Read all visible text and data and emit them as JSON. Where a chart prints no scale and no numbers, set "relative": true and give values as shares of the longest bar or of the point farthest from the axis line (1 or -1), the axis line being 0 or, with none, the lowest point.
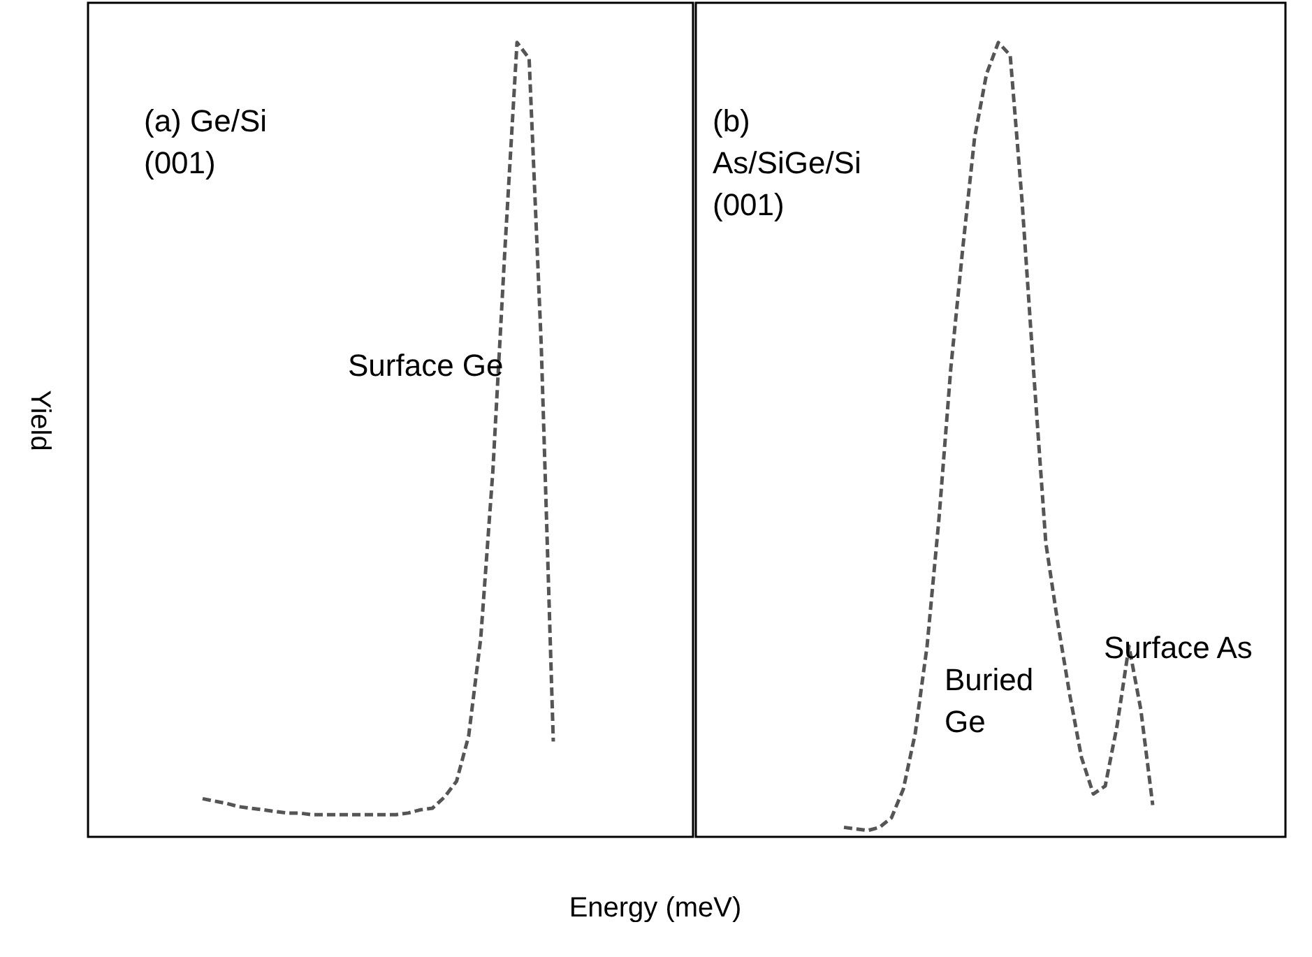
{
  "chart_data": [
    {
      "type": "line",
      "relative": true,
      "xlabel": "Energy (meV)",
      "ylabel": "Yield",
      "line_style": "dashed",
      "grid": false,
      "categories": [
        null,
        null,
        null,
        null,
        null,
        null,
        null,
        null,
        null,
        null,
        null,
        null,
        null,
        null,
        null,
        null,
        null,
        null,
        null,
        null,
        null,
        null,
        null,
        null,
        null,
        null,
        null,
        null,
        null,
        null
      ],
      "series": [
        {
          "color": "#555555",
          "values": [
            0.048,
            0.045,
            0.042,
            0.038,
            0.036,
            0.034,
            0.032,
            0.03,
            0.03,
            0.028,
            0.028,
            0.028,
            0.028,
            0.028,
            0.028,
            0.028,
            0.028,
            0.03,
            0.034,
            0.036,
            0.05,
            0.07,
            0.127,
            0.25,
            0.46,
            0.74,
            1.0,
            0.98,
            0.62,
            0.12
          ]
        }
      ],
      "annotations": [
        "(a) Ge/Si\n(001)",
        "Surface Ge"
      ]
    },
    {
      "type": "line",
      "relative": true,
      "line_style": "dashed",
      "grid": false,
      "categories": [
        null,
        null,
        null,
        null,
        null,
        null,
        null,
        null,
        null,
        null,
        null,
        null,
        null,
        null,
        null,
        null,
        null,
        null,
        null,
        null,
        null,
        null,
        null,
        null,
        null,
        null,
        null
      ],
      "series": [
        {
          "color": "#555555",
          "values": [
            0.012,
            0.01,
            0.008,
            0.012,
            0.024,
            0.06,
            0.13,
            0.24,
            0.4,
            0.59,
            0.74,
            0.88,
            0.96,
            1.0,
            0.984,
            0.8,
            0.58,
            0.37,
            0.27,
            0.18,
            0.1,
            0.054,
            0.064,
            0.14,
            0.24,
            0.16,
            0.04
          ]
        }
      ],
      "annotations": [
        "(b)\nAs/SiGe/Si\n(001)",
        "Buried\nGe",
        "Surface As"
      ]
    }
  ]
}
